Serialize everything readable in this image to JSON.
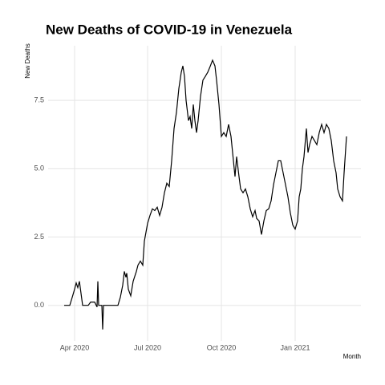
{
  "chart_data": {
    "type": "line",
    "title": "New Deaths of COVID-19 in Venezuela",
    "x_label": "Month",
    "y_label": "New Deaths",
    "xlim": [
      -33,
      357
    ],
    "ylim": [
      -1.3,
      9.5
    ],
    "xticks": [
      {
        "value": 0,
        "label": "Apr 2020"
      },
      {
        "value": 91,
        "label": "Jul 2020"
      },
      {
        "value": 183,
        "label": "Oct 2020"
      },
      {
        "value": 275,
        "label": "Jan 2021"
      }
    ],
    "yticks": [
      {
        "value": 0,
        "label": "0.0"
      },
      {
        "value": 2.5,
        "label": "2.5"
      },
      {
        "value": 5,
        "label": "5.0"
      },
      {
        "value": 7.5,
        "label": "7.5"
      }
    ],
    "grid": true,
    "series": [
      {
        "name": "New Deaths",
        "color": "#000000",
        "x": [
          -13,
          -6,
          -3,
          0,
          2,
          4,
          6,
          8,
          10,
          17,
          20,
          25,
          28,
          29,
          30,
          34,
          35,
          36,
          54,
          57,
          60,
          62,
          64,
          65,
          67,
          70,
          73,
          77,
          79,
          82,
          85,
          87,
          91,
          94,
          97,
          100,
          103,
          106,
          109,
          112,
          115,
          118,
          121,
          124,
          127,
          130,
          133,
          135,
          137,
          139,
          142,
          144,
          146,
          148,
          150,
          152,
          154,
          157,
          160,
          163,
          166,
          169,
          172,
          175,
          177,
          180,
          183,
          186,
          189,
          192,
          195,
          197,
          200,
          202,
          205,
          207,
          210,
          213,
          216,
          219,
          222,
          225,
          227,
          230,
          233,
          236,
          239,
          242,
          245,
          248,
          251,
          254,
          257,
          260,
          263,
          266,
          269,
          272,
          275,
          278,
          280,
          282,
          284,
          286,
          289,
          291,
          293,
          296,
          299,
          302,
          305,
          308,
          311,
          314,
          317,
          320,
          323,
          326,
          328,
          331,
          334,
          336,
          339
        ],
        "values": [
          0,
          0,
          0.29,
          0.59,
          0.82,
          0.65,
          0.88,
          0.44,
          0,
          0,
          0.12,
          0.12,
          -0.06,
          0.88,
          0,
          0,
          -0.88,
          0,
          0,
          0.29,
          0.74,
          1.24,
          1.03,
          1.18,
          0.59,
          0.35,
          0.88,
          1.24,
          1.47,
          1.62,
          1.47,
          2.35,
          3.0,
          3.29,
          3.53,
          3.47,
          3.59,
          3.29,
          3.59,
          4.12,
          4.47,
          4.35,
          5.29,
          6.47,
          7.06,
          7.94,
          8.53,
          8.76,
          8.38,
          7.5,
          6.76,
          6.91,
          6.47,
          7.35,
          6.76,
          6.32,
          6.76,
          7.65,
          8.24,
          8.38,
          8.53,
          8.74,
          8.97,
          8.76,
          8.24,
          7.35,
          6.18,
          6.32,
          6.18,
          6.62,
          6.18,
          5.59,
          4.71,
          5.44,
          4.71,
          4.26,
          4.12,
          4.26,
          3.97,
          3.53,
          3.24,
          3.47,
          3.18,
          3.09,
          2.59,
          3.09,
          3.47,
          3.53,
          3.82,
          4.41,
          4.85,
          5.29,
          5.29,
          4.85,
          4.41,
          3.97,
          3.38,
          2.94,
          2.79,
          3.09,
          3.97,
          4.26,
          5.0,
          5.44,
          6.47,
          5.59,
          5.88,
          6.18,
          6.03,
          5.88,
          6.32,
          6.62,
          6.32,
          6.62,
          6.47,
          6.03,
          5.29,
          4.85,
          4.26,
          3.97,
          3.82,
          4.85,
          6.18
        ]
      }
    ]
  }
}
